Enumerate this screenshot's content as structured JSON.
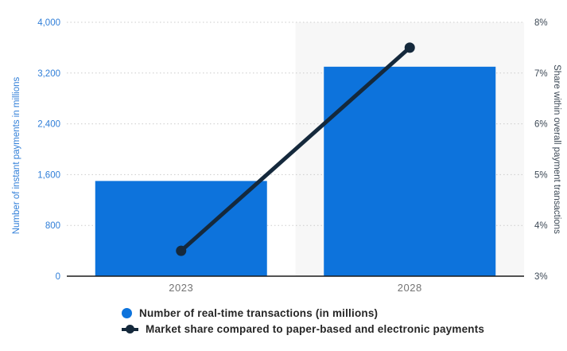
{
  "chart_data": {
    "type": "bar",
    "subtype": "combo-bar-line-dual-axis",
    "categories": [
      "2023",
      "2028"
    ],
    "series": [
      {
        "name": "Number of real-time transactions (in millions)",
        "type": "bar",
        "axis": "left",
        "values": [
          1500,
          3300
        ],
        "color": "#0d73dc"
      },
      {
        "name": "Market share compared to paper-based and electronic payments",
        "type": "line",
        "axis": "right",
        "values": [
          3.5,
          7.5
        ],
        "color": "#15293c"
      }
    ],
    "left_axis": {
      "label": "Number of instant payments in millions",
      "range": [
        0,
        4000
      ],
      "ticks": [
        "0",
        "800",
        "1,600",
        "2,400",
        "3,200",
        "4,000"
      ],
      "color": "#2f7ed8"
    },
    "right_axis": {
      "label": "Share within overall payment transactions",
      "range": [
        3,
        8
      ],
      "ticks": [
        "3%",
        "4%",
        "5%",
        "6%",
        "7%",
        "8%"
      ],
      "color": "#3e4a57"
    },
    "title": "",
    "xlabel": "",
    "grid": "dotted-horizontal",
    "grid_color": "#cccccc",
    "baseline_color": "#1a1a1a",
    "x_label_color": "#737373",
    "highlighted_category": "2028",
    "highlight_color": "#f7f7f7",
    "legend_position": "bottom"
  }
}
